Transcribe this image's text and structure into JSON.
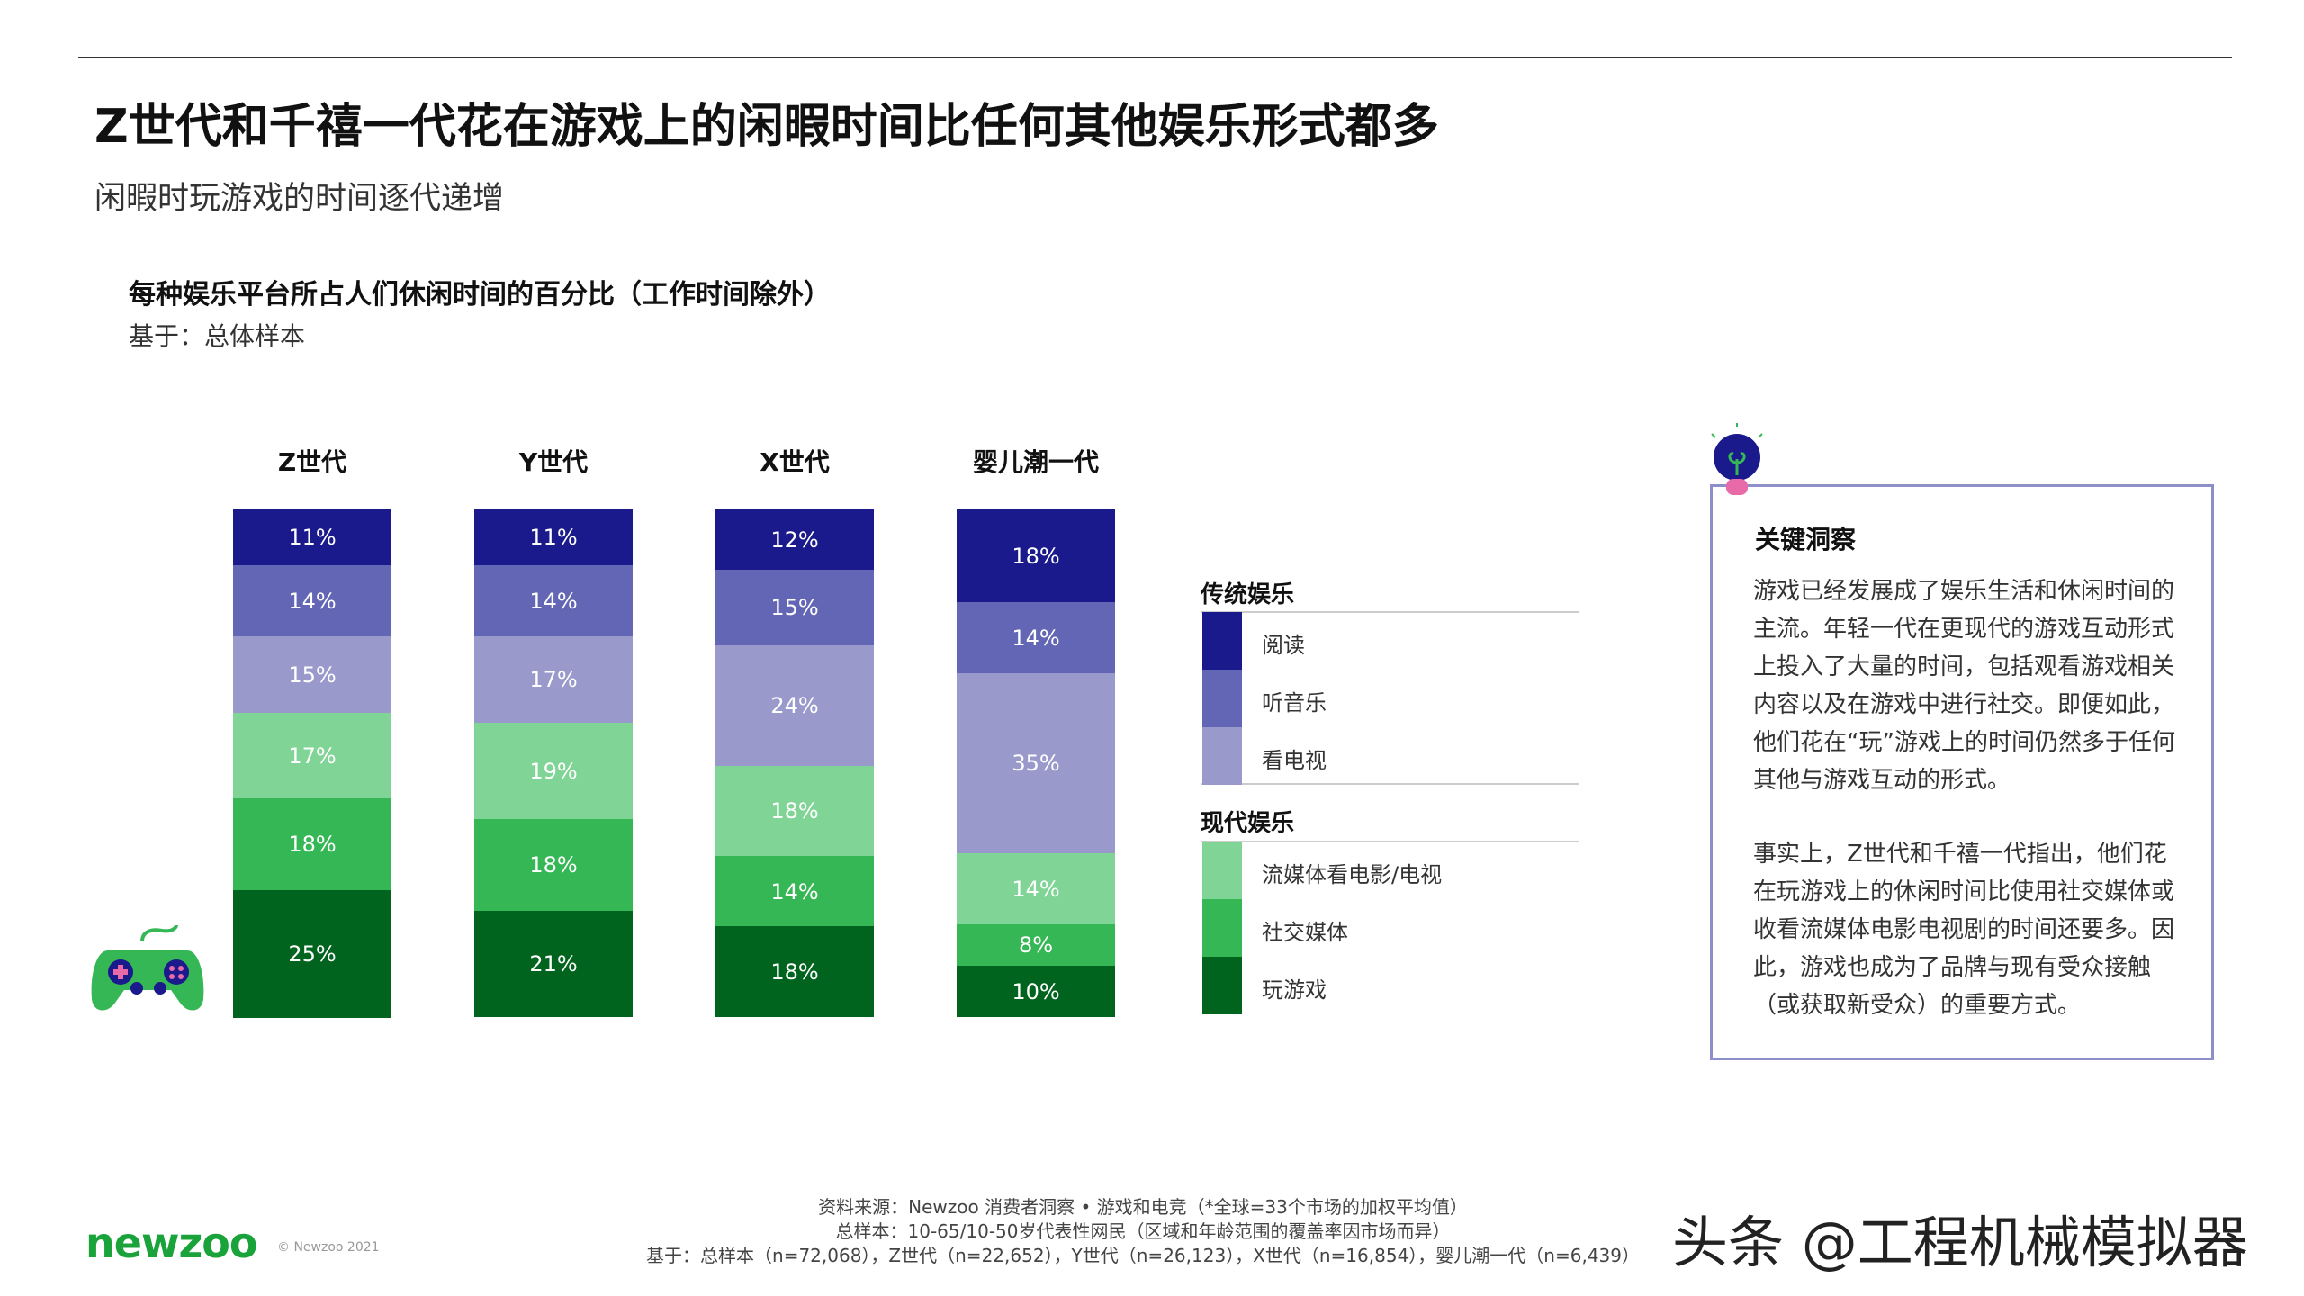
{
  "header": {
    "title": "Z世代和千禧一代花在游戏上的闲暇时间比任何其他娱乐形式都多",
    "subtitle": "闲暇时玩游戏的时间逐代递增"
  },
  "chart_data": {
    "type": "bar",
    "stacked": true,
    "orientation": "vertical",
    "title": "每种娱乐平台所占人们休闲时间的百分比（工作时间除外）",
    "subtitle": "基于：总体样本",
    "categories": [
      "Z世代",
      "Y世代",
      "X世代",
      "婴儿潮一代"
    ],
    "series": [
      {
        "name": "阅读",
        "group": "传统娱乐",
        "color": "#1a1a8c",
        "values": [
          11,
          11,
          12,
          18
        ]
      },
      {
        "name": "听音乐",
        "group": "传统娱乐",
        "color": "#6366b4",
        "values": [
          14,
          14,
          15,
          14
        ]
      },
      {
        "name": "看电视",
        "group": "传统娱乐",
        "color": "#9999cc",
        "values": [
          15,
          17,
          24,
          35
        ]
      },
      {
        "name": "流媒体看电影/电视",
        "group": "现代娱乐",
        "color": "#7fd496",
        "values": [
          17,
          19,
          18,
          14
        ]
      },
      {
        "name": "社交媒体",
        "group": "现代娱乐",
        "color": "#35b755",
        "values": [
          18,
          18,
          14,
          8
        ]
      },
      {
        "name": "玩游戏",
        "group": "现代娱乐",
        "color": "#00641e",
        "values": [
          25,
          21,
          18,
          10
        ]
      }
    ],
    "value_suffix": "%",
    "ylim": [
      0,
      100
    ],
    "grid": false,
    "legend_placement": "right",
    "legend_groups": [
      "传统娱乐",
      "现代娱乐"
    ]
  },
  "insight": {
    "icon": "lightbulb-icon",
    "title": "关键洞察",
    "paragraphs": [
      "游戏已经发展成了娱乐生活和休闲时间的主流。年轻一代在更现代的游戏互动形式上投入了大量的时间，包括观看游戏相关内容以及在游戏中进行社交。即便如此，他们花在“玩”游戏上的时间仍然多于任何其他与游戏互动的形式。",
      "事实上，Z世代和千禧一代指出，他们花在玩游戏上的休闲时间比使用社交媒体或收看流媒体电影电视剧的时间还要多。因此，游戏也成为了品牌与现有受众接触（或获取新受众）的重要方式。"
    ]
  },
  "footer": {
    "source": "资料来源：Newzoo 消费者洞察 • 游戏和电竞（*全球=33个市场的加权平均值）",
    "sample": "总样本：10-65/10-50岁代表性网民（区域和年龄范围的覆盖率因市场而异）",
    "base": "基于：总样本（n=72,068），Z世代（n=22,652），Y世代（n=26,123），X世代（n=16,854），婴儿潮一代（n=6,439）",
    "logo": "newzoo",
    "copyright": "© Newzoo 2021",
    "watermark": "头条 @工程机械模拟器"
  },
  "colors": {
    "brand_green": "#1aa33a",
    "insight_border": "#8e8ec8"
  }
}
